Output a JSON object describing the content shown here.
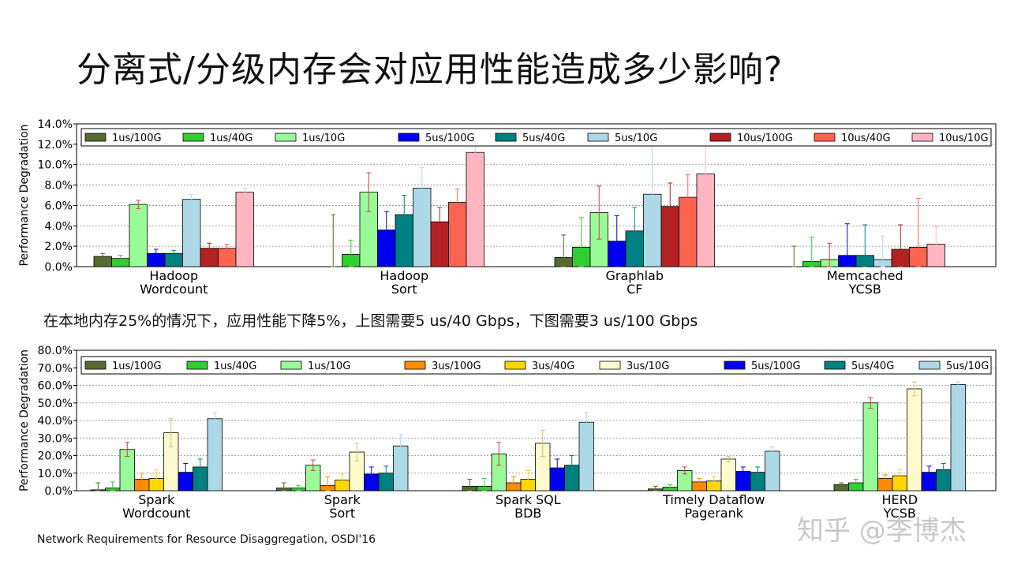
{
  "page": {
    "title": "分离式/分级内存会对应用性能造成多少影响?",
    "caption": "在本地内存25%的情况下，应用性能下降5%，上图需要5 us/40 Gbps，下图需要3 us/100 Gbps",
    "source": "Network Requirements for Resource Disaggregation, OSDI'16",
    "watermark": "知乎 @李博杰"
  },
  "chart_data": [
    {
      "type": "bar",
      "ylabel": "Performance Degradation",
      "ylim": [
        0,
        14
      ],
      "yticks": [
        "0.0%",
        "2.0%",
        "4.0%",
        "6.0%",
        "8.0%",
        "10.0%",
        "12.0%",
        "14.0%"
      ],
      "grid": true,
      "legend_position": "top",
      "categories": [
        [
          "Hadoop",
          "Wordcount"
        ],
        [
          "Hadoop",
          "Sort"
        ],
        [
          "Graphlab",
          "CF"
        ],
        [
          "Memcached",
          "YCSB"
        ]
      ],
      "series": [
        {
          "name": "1us/100G",
          "color": "#556b2f",
          "values": [
            1.0,
            0.0,
            0.9,
            0.0
          ],
          "errors": [
            0.3,
            5.1,
            2.2,
            2.0
          ]
        },
        {
          "name": "1us/40G",
          "color": "#32cd32",
          "values": [
            0.8,
            1.2,
            1.9,
            0.5
          ],
          "errors": [
            0.3,
            1.4,
            2.9,
            2.4
          ]
        },
        {
          "name": "1us/10G",
          "color": "#98fb98",
          "values": [
            6.1,
            7.3,
            5.3,
            0.7
          ],
          "errors": [
            0.4,
            1.9,
            2.6,
            1.6
          ]
        },
        {
          "name": "5us/100G",
          "color": "#0000ee",
          "values": [
            1.3,
            3.6,
            2.5,
            1.1
          ],
          "errors": [
            0.4,
            1.8,
            2.5,
            3.1
          ]
        },
        {
          "name": "5us/40G",
          "color": "#008080",
          "values": [
            1.3,
            5.1,
            3.5,
            1.1
          ],
          "errors": [
            0.3,
            1.9,
            2.3,
            3.0
          ]
        },
        {
          "name": "5us/10G",
          "color": "#add8e6",
          "values": [
            6.6,
            7.7,
            7.1,
            0.7
          ],
          "errors": [
            0.5,
            2.0,
            5.5,
            2.3
          ]
        },
        {
          "name": "10us/100G",
          "color": "#b22222",
          "values": [
            1.8,
            4.4,
            5.9,
            1.7
          ],
          "errors": [
            0.5,
            1.4,
            2.3,
            2.4
          ]
        },
        {
          "name": "10us/40G",
          "color": "#fa6450",
          "values": [
            1.8,
            6.3,
            6.8,
            1.9
          ],
          "errors": [
            0.4,
            1.3,
            2.2,
            4.8
          ]
        },
        {
          "name": "10us/10G",
          "color": "#ffb6c1",
          "values": [
            7.3,
            11.2,
            9.1,
            2.2
          ],
          "errors": [
            0.4,
            1.2,
            3.4,
            1.7
          ]
        }
      ]
    },
    {
      "type": "bar",
      "ylabel": "Performance Degradation",
      "ylim": [
        0,
        80
      ],
      "yticks": [
        "0.0%",
        "10.0%",
        "20.0%",
        "30.0%",
        "40.0%",
        "50.0%",
        "60.0%",
        "70.0%",
        "80.0%"
      ],
      "grid": true,
      "legend_position": "top",
      "categories": [
        [
          "Spark",
          "Wordcount"
        ],
        [
          "Spark",
          "Sort"
        ],
        [
          "Spark SQL",
          "BDB"
        ],
        [
          "Timely Dataflow",
          "Pagerank"
        ],
        [
          "HERD",
          "YCSB"
        ]
      ],
      "series": [
        {
          "name": "1us/100G",
          "color": "#556b2f",
          "values": [
            0.5,
            1.5,
            2.5,
            1.0,
            3.5
          ],
          "errors": [
            4.0,
            3.0,
            4.0,
            1.5,
            1.0
          ]
        },
        {
          "name": "1us/40G",
          "color": "#32cd32",
          "values": [
            1.5,
            1.5,
            2.5,
            2.0,
            4.5
          ],
          "errors": [
            3.5,
            1.5,
            4.5,
            1.5,
            2.0
          ]
        },
        {
          "name": "1us/10G",
          "color": "#98fb98",
          "values": [
            23.5,
            14.5,
            21.0,
            11.5,
            50.0
          ],
          "errors": [
            4.0,
            3.0,
            6.5,
            2.0,
            3.0
          ]
        },
        {
          "name": "3us/100G",
          "color": "#ff8c00",
          "values": [
            6.5,
            3.0,
            4.5,
            5.0,
            7.0
          ],
          "errors": [
            3.5,
            5.0,
            3.5,
            2.0,
            2.0
          ]
        },
        {
          "name": "3us/40G",
          "color": "#ffd700",
          "values": [
            7.0,
            6.0,
            6.5,
            5.5,
            8.5
          ],
          "errors": [
            5.0,
            3.5,
            5.0,
            2.5,
            3.5
          ]
        },
        {
          "name": "3us/10G",
          "color": "#fffacd",
          "values": [
            33.0,
            22.0,
            27.0,
            18.0,
            58.0
          ],
          "errors": [
            8.0,
            5.0,
            7.5,
            1.5,
            4.0
          ]
        },
        {
          "name": "5us/100G",
          "color": "#0000ee",
          "values": [
            10.5,
            9.5,
            13.0,
            11.0,
            10.5
          ],
          "errors": [
            5.0,
            4.0,
            5.0,
            2.5,
            3.5
          ]
        },
        {
          "name": "5us/40G",
          "color": "#008080",
          "values": [
            13.5,
            10.0,
            14.5,
            10.5,
            12.0
          ],
          "errors": [
            4.5,
            4.0,
            5.5,
            3.0,
            3.5
          ]
        },
        {
          "name": "5us/10G",
          "color": "#add8e6",
          "values": [
            41.0,
            25.5,
            39.0,
            22.5,
            60.5
          ],
          "errors": [
            3.5,
            6.5,
            5.5,
            2.5,
            1.5
          ]
        }
      ]
    }
  ]
}
